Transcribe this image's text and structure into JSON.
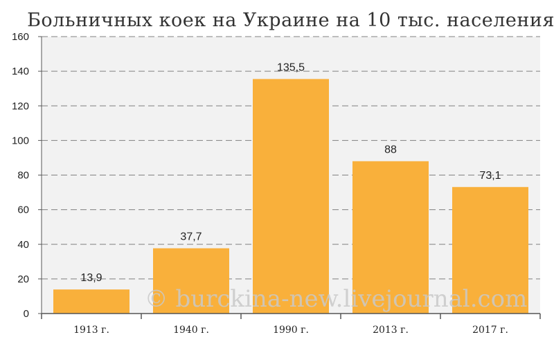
{
  "chart_data": {
    "type": "bar",
    "title": "Больничных коек на Украине на 10 тыс. населения",
    "categories": [
      "1913 г.",
      "1940 г.",
      "1990 г.",
      "2013 г.",
      "2017 г."
    ],
    "values": [
      13.9,
      37.7,
      135.5,
      88,
      73.1
    ],
    "value_labels": [
      "13,9",
      "37,7",
      "135,5",
      "88",
      "73,1"
    ],
    "yticks": [
      "0",
      "20",
      "40",
      "60",
      "80",
      "100",
      "120",
      "140",
      "160"
    ],
    "ylim": [
      0,
      160
    ],
    "grid": true,
    "xlabel": "",
    "ylabel": "",
    "colors": {
      "bar": "#F9B03B",
      "plot_background": "#F2F2F2",
      "grid": "#808080"
    }
  },
  "watermark": "© burckina-new.livejournal.com"
}
